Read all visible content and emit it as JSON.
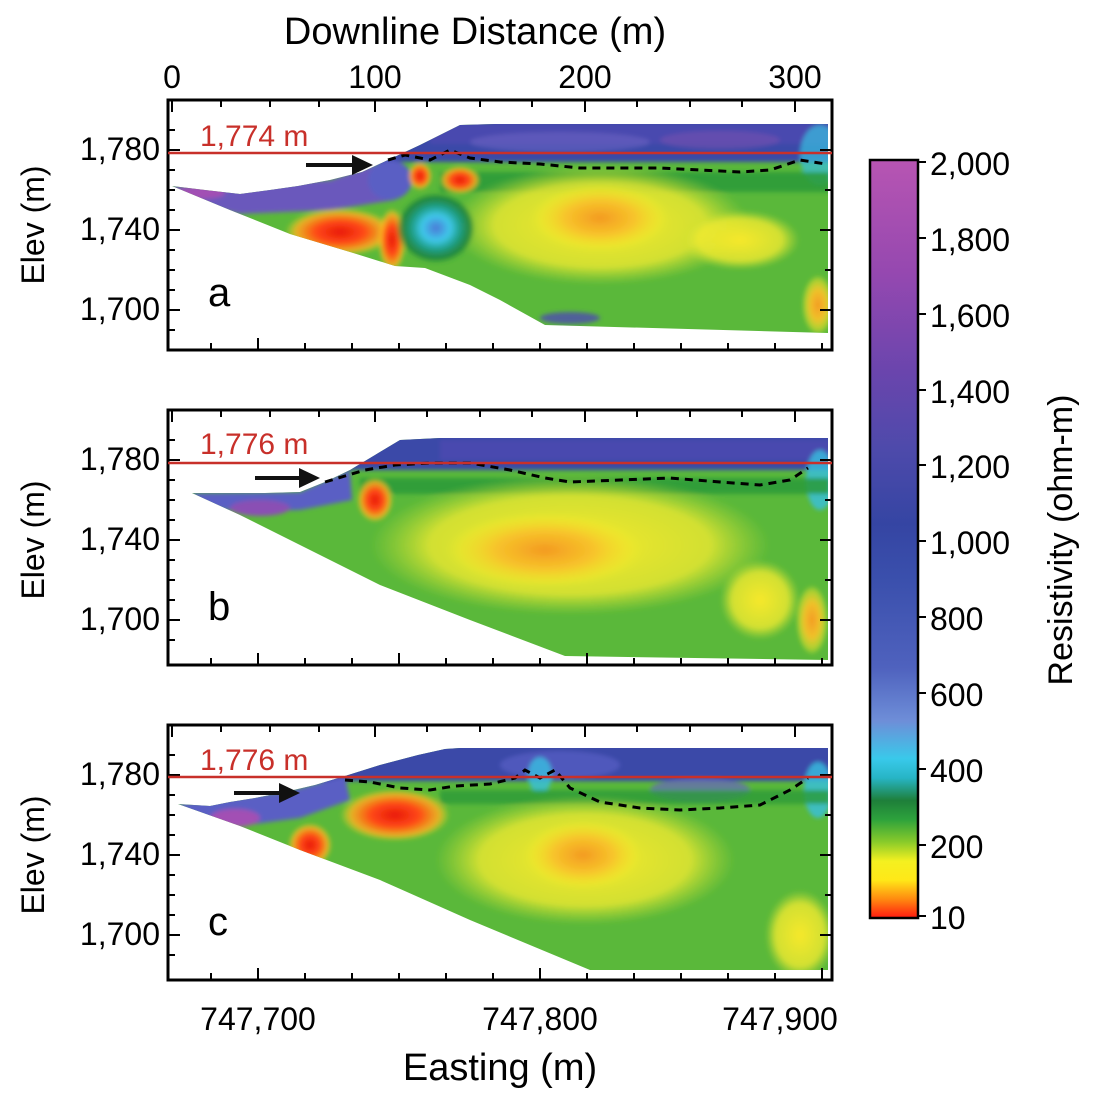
{
  "figure": {
    "top_axis_label": "Downline Distance (m)",
    "top_ticks": [
      "0",
      "100",
      "200",
      "300"
    ],
    "bottom_axis_label": "Easting (m)",
    "bottom_ticks": [
      "747,700",
      "747,800",
      "747,900"
    ],
    "colorbar_label": "Resistivity (ohm-m)",
    "colorbar_ticks": [
      "2,000",
      "1,800",
      "1,600",
      "1,400",
      "1,200",
      "1,000",
      "800",
      "600",
      "400",
      "200",
      "10"
    ]
  },
  "colors": {
    "reference_line": "#c8302a",
    "axis": "#000000"
  },
  "chart_data": [
    {
      "type": "heatmap",
      "panel": "a",
      "ylabel": "Elev (m)",
      "y_ticks": [
        "1,780",
        "1,740",
        "1,700"
      ],
      "x_distance_range": [
        0,
        315
      ],
      "ylim": [
        1682,
        1800
      ],
      "reference_line": {
        "elevation": 1774,
        "label": "1,774 m"
      },
      "arrow_target_distance": 97,
      "anomalies": [
        {
          "x": 35,
          "y": 1737,
          "resistivity": 10
        },
        {
          "x": 80,
          "y": 1744,
          "resistivity": 10
        },
        {
          "x": 100,
          "y": 1762,
          "resistivity": 10
        },
        {
          "x": 115,
          "y": 1762,
          "resistivity": 10
        },
        {
          "x": 138,
          "y": 1762,
          "resistivity": 10
        },
        {
          "x": 128,
          "y": 1740,
          "resistivity": 300
        },
        {
          "x": 212,
          "y": 1742,
          "resistivity": 50
        },
        {
          "x": 300,
          "y": 1702,
          "resistivity": 20
        }
      ]
    },
    {
      "type": "heatmap",
      "panel": "b",
      "ylabel": "Elev (m)",
      "y_ticks": [
        "1,780",
        "1,740",
        "1,700"
      ],
      "x_distance_range": [
        0,
        315
      ],
      "ylim": [
        1682,
        1800
      ],
      "reference_line": {
        "elevation": 1776,
        "label": "1,776 m"
      },
      "arrow_target_distance": 72,
      "anomalies": [
        {
          "x": 92,
          "y": 1758,
          "resistivity": 10
        },
        {
          "x": 160,
          "y": 1737,
          "resistivity": 60
        },
        {
          "x": 300,
          "y": 1700,
          "resistivity": 30
        }
      ]
    },
    {
      "type": "heatmap",
      "panel": "c",
      "ylabel": "Elev (m)",
      "y_ticks": [
        "1,780",
        "1,740",
        "1,700"
      ],
      "x_distance_range": [
        0,
        315
      ],
      "ylim": [
        1682,
        1800
      ],
      "reference_line": {
        "elevation": 1776,
        "label": "1,776 m"
      },
      "arrow_target_distance": 60,
      "anomalies": [
        {
          "x": 63,
          "y": 1744,
          "resistivity": 10
        },
        {
          "x": 100,
          "y": 1760,
          "resistivity": 10
        },
        {
          "x": 198,
          "y": 1737,
          "resistivity": 50
        }
      ]
    }
  ]
}
